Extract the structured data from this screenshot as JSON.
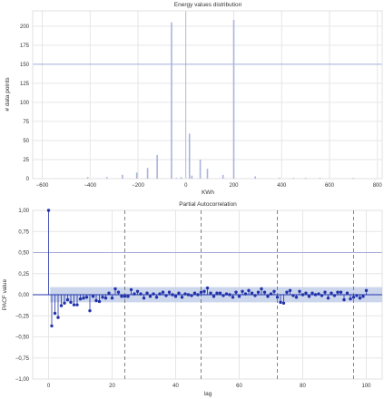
{
  "chart_data": [
    {
      "type": "bar",
      "title": "Energy values distribution",
      "xlabel": "KWh",
      "ylabel": "# data points",
      "xlim": [
        -640,
        820
      ],
      "ylim": [
        0,
        220
      ],
      "xticks": [
        -600,
        -400,
        -200,
        0,
        200,
        400,
        600,
        800
      ],
      "xtick_labels": [
        "−600",
        "−400",
        "−200",
        "0",
        "200",
        "400",
        "600",
        "800"
      ],
      "yticks": [
        0,
        25,
        50,
        75,
        100,
        125,
        150,
        175,
        200
      ],
      "yreference": 150,
      "grid": true,
      "bar_color": "#aab3df",
      "reference_color": "#8f9bd6",
      "x": [
        -410,
        -330,
        -265,
        -205,
        -160,
        -120,
        -60,
        -40,
        -20,
        15,
        25,
        60,
        90,
        155,
        200,
        290,
        390,
        450,
        500,
        560,
        700
      ],
      "values": [
        2,
        2,
        5,
        8,
        14,
        31,
        205,
        1,
        2,
        59,
        4,
        25,
        13,
        5,
        208,
        3,
        1,
        1,
        1,
        1,
        1
      ]
    },
    {
      "type": "scatter",
      "title": "Partial Autocorrelation",
      "xlabel": "lag",
      "ylabel": "PACF value",
      "xlim": [
        -5,
        105
      ],
      "ylim": [
        -1.0,
        1.0
      ],
      "xticks": [
        0,
        20,
        40,
        60,
        80,
        100
      ],
      "yticks": [
        -1.0,
        -0.75,
        -0.5,
        -0.25,
        0.0,
        0.25,
        0.5,
        0.75,
        1.0
      ],
      "ytick_labels": [
        "−1,00",
        "−0,75",
        "−0,50",
        "−0,25",
        "0,00",
        "0,25",
        "0,50",
        "0,75",
        "1,00"
      ],
      "confidence_band": [
        -0.09,
        0.09
      ],
      "vertical_lines": [
        24,
        48,
        72,
        96
      ],
      "yreference": 0.5,
      "grid": true,
      "marker_color": "#2233aa",
      "band_color": "#c5d0ea",
      "vline_color": "#666666",
      "x": [
        0,
        1,
        2,
        3,
        4,
        5,
        6,
        7,
        8,
        9,
        10,
        11,
        12,
        13,
        14,
        15,
        16,
        17,
        18,
        19,
        20,
        21,
        22,
        23,
        24,
        25,
        26,
        27,
        28,
        29,
        30,
        31,
        32,
        33,
        34,
        35,
        36,
        37,
        38,
        39,
        40,
        41,
        42,
        43,
        44,
        45,
        46,
        47,
        48,
        49,
        50,
        51,
        52,
        53,
        54,
        55,
        56,
        57,
        58,
        59,
        60,
        61,
        62,
        63,
        64,
        65,
        66,
        67,
        68,
        69,
        70,
        71,
        72,
        73,
        74,
        75,
        76,
        77,
        78,
        79,
        80,
        81,
        82,
        83,
        84,
        85,
        86,
        87,
        88,
        89,
        90,
        91,
        92,
        93,
        94,
        95,
        96,
        97,
        98,
        99,
        100
      ],
      "values": [
        1.0,
        -0.37,
        -0.22,
        -0.27,
        -0.13,
        -0.1,
        -0.06,
        -0.09,
        -0.12,
        -0.12,
        -0.05,
        -0.04,
        -0.03,
        -0.19,
        -0.02,
        -0.07,
        -0.08,
        -0.03,
        -0.04,
        0.02,
        -0.04,
        0.07,
        0.03,
        -0.02,
        -0.02,
        -0.02,
        0.06,
        0.01,
        0.04,
        0.01,
        -0.04,
        0.02,
        -0.02,
        0.01,
        -0.03,
        0.01,
        0.03,
        -0.01,
        0.03,
        0.0,
        -0.02,
        0.02,
        -0.03,
        0.01,
        0.0,
        -0.01,
        0.02,
        0.0,
        0.03,
        0.04,
        0.08,
        0.02,
        -0.02,
        0.02,
        0.02,
        -0.01,
        0.01,
        0.0,
        -0.03,
        0.03,
        -0.02,
        0.04,
        0.01,
        0.05,
        0.02,
        -0.01,
        0.03,
        0.07,
        0.03,
        -0.02,
        0.01,
        0.04,
        -0.03,
        -0.09,
        -0.1,
        0.03,
        0.05,
        -0.01,
        -0.03,
        0.04,
        0.0,
        0.02,
        -0.02,
        0.02,
        0.0,
        0.01,
        -0.01,
        0.03,
        -0.04,
        0.02,
        -0.01,
        0.03,
        0.03,
        -0.06,
        0.02,
        -0.05,
        -0.03,
        -0.01,
        -0.04,
        -0.02,
        0.05
      ]
    }
  ]
}
